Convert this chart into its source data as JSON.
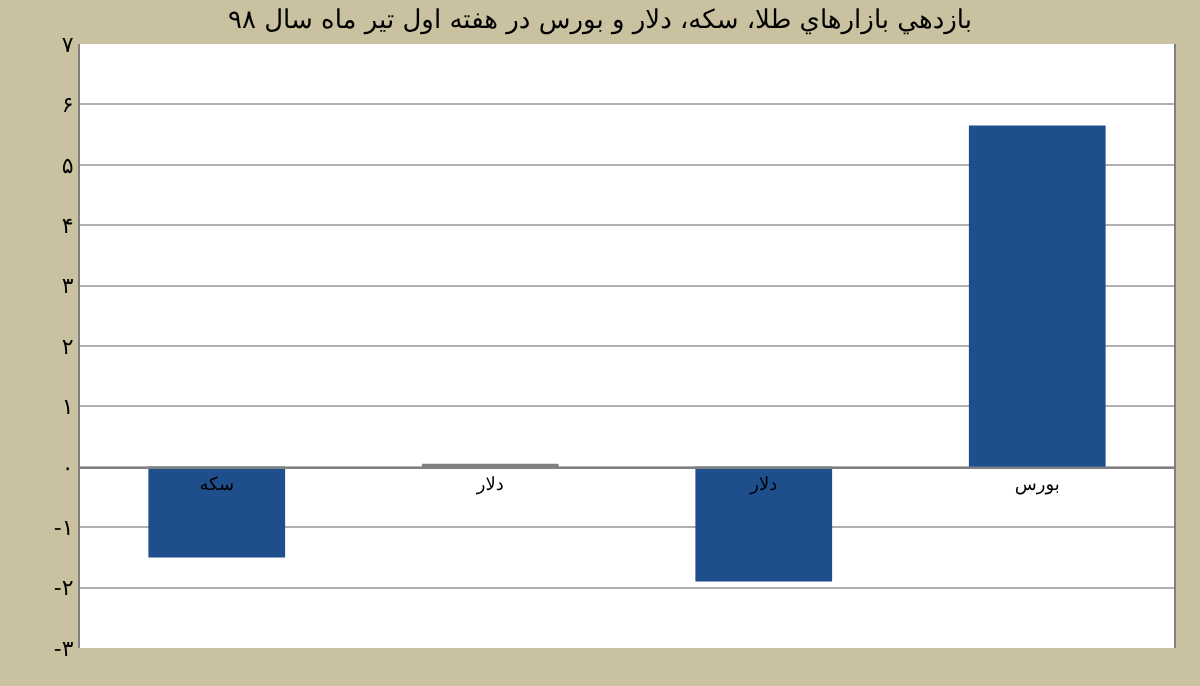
{
  "chart_data": {
    "type": "bar",
    "title": "بازدهي بازارهاي طلا، سکه، دلار و بورس در هفته اول تير ماه سال ۹۸",
    "categories": [
      "سکه",
      "دلار",
      "دلار",
      "بورس"
    ],
    "values": [
      -1.5,
      0.05,
      -1.9,
      5.65
    ],
    "colors": [
      "#1f4e8c",
      "#7f7f7f",
      "#1f4e8c",
      "#1f4e8c"
    ],
    "ylim": [
      -3,
      7
    ],
    "yticks": [
      {
        "value": -3,
        "label": "-۳"
      },
      {
        "value": -2,
        "label": "-۲"
      },
      {
        "value": -1,
        "label": "-۱"
      },
      {
        "value": 0,
        "label": "۰"
      },
      {
        "value": 1,
        "label": "۱"
      },
      {
        "value": 2,
        "label": "۲"
      },
      {
        "value": 3,
        "label": "۳"
      },
      {
        "value": 4,
        "label": "۴"
      },
      {
        "value": 5,
        "label": "۵"
      },
      {
        "value": 6,
        "label": "۶"
      },
      {
        "value": 7,
        "label": "۷"
      }
    ],
    "grid": "y",
    "legend": false
  }
}
